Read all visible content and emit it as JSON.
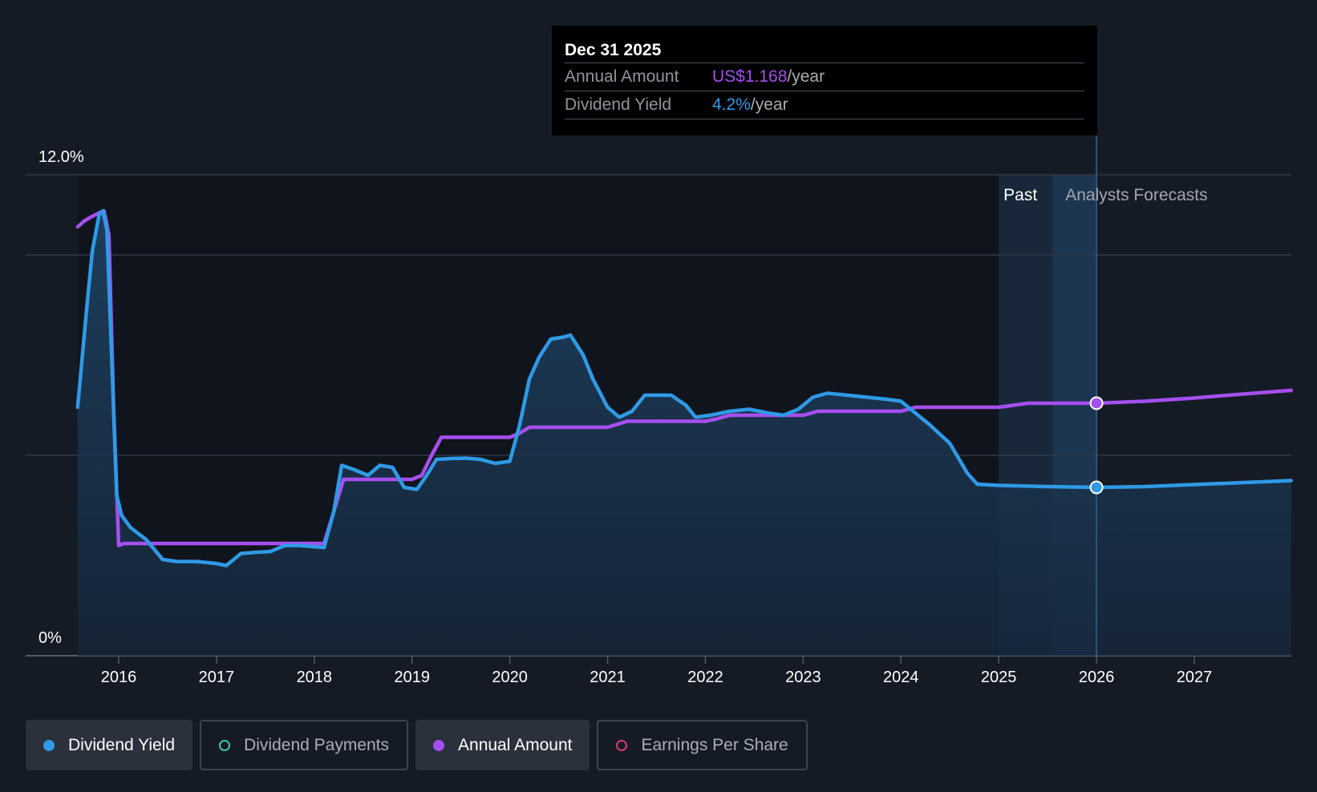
{
  "tooltip": {
    "date": "Dec 31 2025",
    "rows": [
      {
        "label": "Annual Amount",
        "value": "US$1.168",
        "unit": "/year"
      },
      {
        "label": "Dividend Yield",
        "value": "4.2%",
        "unit": "/year"
      }
    ]
  },
  "legend": [
    {
      "label": "Dividend Yield",
      "color": "#2f9ae6",
      "filled": true,
      "active": true
    },
    {
      "label": "Dividend Payments",
      "color": "#3fc4b4",
      "filled": false,
      "active": false
    },
    {
      "label": "Annual Amount",
      "color": "#a64ff0",
      "filled": true,
      "active": true
    },
    {
      "label": "Earnings Per Share",
      "color": "#d43c74",
      "filled": false,
      "active": false
    }
  ],
  "chart_data": {
    "type": "line",
    "y_tick_labels": [
      "12.0%",
      "0%"
    ],
    "ylim": [
      0,
      12
    ],
    "x_tick_labels": [
      "2016",
      "2017",
      "2018",
      "2019",
      "2020",
      "2021",
      "2022",
      "2023",
      "2024",
      "2025",
      "2026",
      "2027"
    ],
    "x_ticks": [
      2016,
      2017,
      2018,
      2019,
      2020,
      2021,
      2022,
      2023,
      2024,
      2025,
      2026,
      2027
    ],
    "xlim": [
      2015.0,
      2027.99
    ],
    "grid_values": [
      0,
      5,
      10,
      12
    ],
    "region_labels": {
      "past": "Past",
      "forecast": "Analysts Forecasts"
    },
    "shaded_region": [
      2025.0,
      2026.0
    ],
    "highlight_x": 2026.0,
    "colors": {
      "yield": "#2f9ae6",
      "amount": "#a64ff0",
      "grid": "#313846",
      "axis": "#555b66",
      "tick_label": "#ffffff"
    },
    "series": [
      {
        "name": "Dividend Yield",
        "unit": "%",
        "points": [
          [
            2015.58,
            6.2
          ],
          [
            2015.61,
            7.0
          ],
          [
            2015.67,
            8.6
          ],
          [
            2015.73,
            10.1
          ],
          [
            2015.8,
            11.0
          ],
          [
            2015.84,
            11.1
          ],
          [
            2015.88,
            10.6
          ],
          [
            2015.92,
            8.0
          ],
          [
            2015.98,
            4.0
          ],
          [
            2016.03,
            3.5
          ],
          [
            2016.12,
            3.2
          ],
          [
            2016.28,
            2.9
          ],
          [
            2016.45,
            2.4
          ],
          [
            2016.6,
            2.35
          ],
          [
            2016.8,
            2.35
          ],
          [
            2017.0,
            2.3
          ],
          [
            2017.1,
            2.25
          ],
          [
            2017.25,
            2.55
          ],
          [
            2017.4,
            2.58
          ],
          [
            2017.55,
            2.6
          ],
          [
            2017.7,
            2.75
          ],
          [
            2017.85,
            2.75
          ],
          [
            2018.1,
            2.7
          ],
          [
            2018.2,
            3.6
          ],
          [
            2018.28,
            4.75
          ],
          [
            2018.4,
            4.65
          ],
          [
            2018.55,
            4.5
          ],
          [
            2018.67,
            4.75
          ],
          [
            2018.8,
            4.7
          ],
          [
            2018.92,
            4.2
          ],
          [
            2019.05,
            4.15
          ],
          [
            2019.15,
            4.5
          ],
          [
            2019.25,
            4.9
          ],
          [
            2019.4,
            4.92
          ],
          [
            2019.55,
            4.93
          ],
          [
            2019.7,
            4.9
          ],
          [
            2019.85,
            4.8
          ],
          [
            2020.0,
            4.85
          ],
          [
            2020.1,
            5.75
          ],
          [
            2020.2,
            6.9
          ],
          [
            2020.3,
            7.45
          ],
          [
            2020.42,
            7.9
          ],
          [
            2020.55,
            7.95
          ],
          [
            2020.62,
            8.0
          ],
          [
            2020.75,
            7.5
          ],
          [
            2020.85,
            6.9
          ],
          [
            2021.0,
            6.2
          ],
          [
            2021.12,
            5.95
          ],
          [
            2021.25,
            6.1
          ],
          [
            2021.38,
            6.5
          ],
          [
            2021.5,
            6.5
          ],
          [
            2021.65,
            6.5
          ],
          [
            2021.8,
            6.25
          ],
          [
            2021.9,
            5.95
          ],
          [
            2022.05,
            6.0
          ],
          [
            2022.25,
            6.1
          ],
          [
            2022.45,
            6.15
          ],
          [
            2022.65,
            6.05
          ],
          [
            2022.8,
            6.0
          ],
          [
            2022.95,
            6.15
          ],
          [
            2023.1,
            6.45
          ],
          [
            2023.25,
            6.55
          ],
          [
            2023.45,
            6.5
          ],
          [
            2023.65,
            6.45
          ],
          [
            2023.85,
            6.4
          ],
          [
            2024.0,
            6.35
          ],
          [
            2024.15,
            6.05
          ],
          [
            2024.3,
            5.75
          ],
          [
            2024.5,
            5.3
          ],
          [
            2024.68,
            4.55
          ],
          [
            2024.78,
            4.28
          ],
          [
            2025.0,
            4.25
          ],
          [
            2025.5,
            4.22
          ],
          [
            2026.0,
            4.2
          ],
          [
            2026.5,
            4.22
          ],
          [
            2027.0,
            4.27
          ],
          [
            2027.5,
            4.32
          ],
          [
            2027.99,
            4.37
          ]
        ]
      },
      {
        "name": "Annual Amount",
        "unit": "relative",
        "points": [
          [
            2015.58,
            10.7
          ],
          [
            2015.65,
            10.85
          ],
          [
            2015.72,
            10.95
          ],
          [
            2015.8,
            11.05
          ],
          [
            2015.85,
            11.1
          ],
          [
            2015.9,
            10.5
          ],
          [
            2015.95,
            6.0
          ],
          [
            2016.0,
            2.75
          ],
          [
            2016.05,
            2.8
          ],
          [
            2017.0,
            2.8
          ],
          [
            2018.1,
            2.8
          ],
          [
            2018.2,
            3.6
          ],
          [
            2018.3,
            4.4
          ],
          [
            2019.0,
            4.4
          ],
          [
            2019.1,
            4.5
          ],
          [
            2019.2,
            5.0
          ],
          [
            2019.3,
            5.45
          ],
          [
            2020.0,
            5.45
          ],
          [
            2020.1,
            5.55
          ],
          [
            2020.2,
            5.7
          ],
          [
            2021.0,
            5.7
          ],
          [
            2021.2,
            5.85
          ],
          [
            2022.0,
            5.85
          ],
          [
            2022.1,
            5.9
          ],
          [
            2022.25,
            6.0
          ],
          [
            2023.0,
            6.0
          ],
          [
            2023.15,
            6.1
          ],
          [
            2024.0,
            6.1
          ],
          [
            2024.15,
            6.2
          ],
          [
            2025.0,
            6.2
          ],
          [
            2025.15,
            6.25
          ],
          [
            2025.3,
            6.3
          ],
          [
            2026.0,
            6.3
          ],
          [
            2026.5,
            6.35
          ],
          [
            2027.0,
            6.43
          ],
          [
            2027.5,
            6.53
          ],
          [
            2027.99,
            6.62
          ]
        ]
      }
    ],
    "markers": [
      {
        "series": "Annual Amount",
        "x": 2026.0,
        "y": 6.3
      },
      {
        "series": "Dividend Yield",
        "x": 2026.0,
        "y": 4.2
      }
    ]
  }
}
